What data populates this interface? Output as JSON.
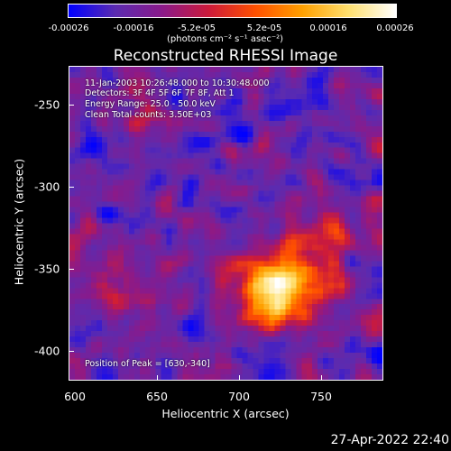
{
  "colorbar": {
    "ticks": [
      "-0.00026",
      "-0.00016",
      "-5.2e-05",
      "5.2e-05",
      "0.00016",
      "0.00026"
    ],
    "unit_label": "(photons cm⁻² s⁻¹ asec⁻²)",
    "colors": [
      "#0000ff",
      "#5b2bb0",
      "#8a1a8a",
      "#cc1a3a",
      "#ff5000",
      "#ffa000",
      "#ffe070",
      "#ffffff"
    ]
  },
  "title": "Reconstructed RHESSI Image",
  "info": {
    "time_range": "11-Jan-2003 10:26:48.000 to 10:30:48.000",
    "detectors": "Detectors: 3F 4F 5F 6F 7F 8F, Att 1",
    "energy_range": "Energy Range: 25.0 - 50.0 keV",
    "method_counts": "Clean     Total counts: 3.50E+03",
    "peak_position": "Position of Peak = [630,-340]"
  },
  "axes": {
    "xlabel": "Heliocentric X (arcsec)",
    "ylabel": "Heliocentric Y (arcsec)",
    "xticks": [
      "600",
      "650",
      "700",
      "750"
    ],
    "yticks": [
      "-250",
      "-300",
      "-350",
      "-400"
    ],
    "xlim": [
      600,
      790
    ],
    "ylim": [
      -420,
      -230
    ]
  },
  "datestamp": "27-Apr-2022 22:40"
}
